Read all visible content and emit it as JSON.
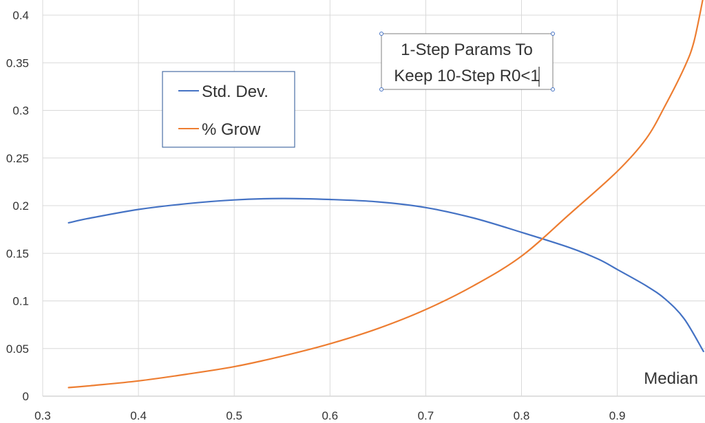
{
  "chart_data": {
    "type": "line",
    "title": "1-Step Params To Keep 10-Step R0<1",
    "title_lines": [
      "1-Step Params To",
      "Keep 10-Step R0<1"
    ],
    "xlabel": "Median",
    "ylabel": "",
    "xlim": [
      0.3,
      0.99
    ],
    "ylim": [
      0,
      0.42
    ],
    "grid": true,
    "legend_position": "upper-left",
    "x_ticks": [
      "0.3",
      "0.4",
      "0.5",
      "0.6",
      "0.7",
      "0.8",
      "0.9"
    ],
    "y_ticks": [
      "0",
      "0.05",
      "0.1",
      "0.15",
      "0.2",
      "0.25",
      "0.3",
      "0.35",
      "0.4"
    ],
    "x_tick_values": [
      0.3,
      0.4,
      0.5,
      0.6,
      0.7,
      0.8,
      0.9
    ],
    "y_tick_values": [
      0,
      0.05,
      0.1,
      0.15,
      0.2,
      0.25,
      0.3,
      0.35,
      0.4
    ],
    "series": [
      {
        "name": "Std. Dev.",
        "color": "#4472c4",
        "points": [
          [
            0.327,
            0.182
          ],
          [
            0.35,
            0.187
          ],
          [
            0.4,
            0.196
          ],
          [
            0.45,
            0.202
          ],
          [
            0.5,
            0.206
          ],
          [
            0.55,
            0.2075
          ],
          [
            0.6,
            0.2065
          ],
          [
            0.65,
            0.204
          ],
          [
            0.7,
            0.198
          ],
          [
            0.75,
            0.187
          ],
          [
            0.8,
            0.172
          ],
          [
            0.85,
            0.156
          ],
          [
            0.88,
            0.144
          ],
          [
            0.9,
            0.133
          ],
          [
            0.93,
            0.116
          ],
          [
            0.95,
            0.102
          ],
          [
            0.97,
            0.081
          ],
          [
            0.99,
            0.047
          ]
        ]
      },
      {
        "name": "% Grow",
        "color": "#ed7d31",
        "points": [
          [
            0.327,
            0.009
          ],
          [
            0.35,
            0.011
          ],
          [
            0.4,
            0.016
          ],
          [
            0.45,
            0.023
          ],
          [
            0.5,
            0.031
          ],
          [
            0.55,
            0.042
          ],
          [
            0.6,
            0.055
          ],
          [
            0.65,
            0.071
          ],
          [
            0.7,
            0.091
          ],
          [
            0.75,
            0.116
          ],
          [
            0.8,
            0.147
          ],
          [
            0.85,
            0.191
          ],
          [
            0.9,
            0.236
          ],
          [
            0.93,
            0.27
          ],
          [
            0.95,
            0.305
          ],
          [
            0.97,
            0.345
          ],
          [
            0.98,
            0.372
          ],
          [
            0.99,
            0.42
          ]
        ]
      }
    ]
  }
}
